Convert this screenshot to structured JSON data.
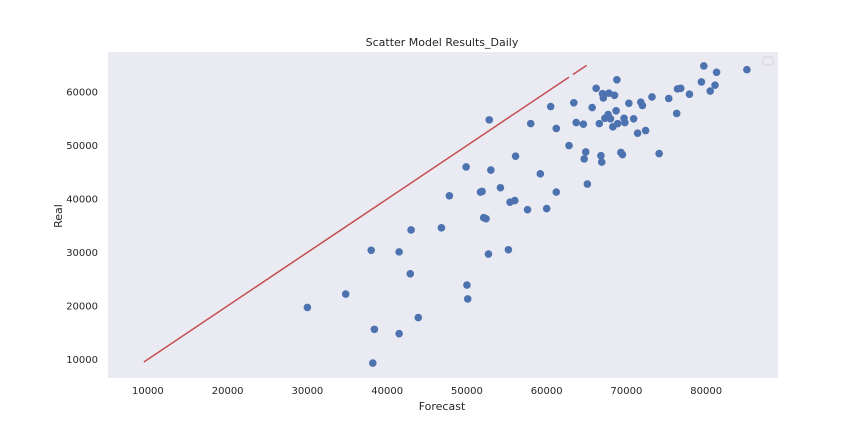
{
  "chart_data": {
    "type": "scatter",
    "title": "Scatter Model Results_Daily",
    "xlabel": "Forecast",
    "ylabel": "Real",
    "xlim": [
      5000,
      89000
    ],
    "ylim": [
      6500,
      67500
    ],
    "xticks": [
      10000,
      20000,
      30000,
      40000,
      50000,
      60000,
      70000,
      80000
    ],
    "yticks": [
      10000,
      20000,
      30000,
      40000,
      50000,
      60000
    ],
    "xtick_labels": [
      "10000",
      "20000",
      "30000",
      "40000",
      "50000",
      "60000",
      "70000",
      "80000"
    ],
    "ytick_labels": [
      "10000",
      "20000",
      "30000",
      "40000",
      "50000",
      "60000"
    ],
    "grid": false,
    "legend": "top-right",
    "colors": {
      "plot_background": "#eaeaf2",
      "points": "#4c72b0",
      "line": "#c44e52"
    },
    "line": {
      "x": [
        9500,
        62800,
        63300,
        65000
      ],
      "y": [
        9500,
        62800,
        63300,
        65000
      ]
    },
    "points": [
      [
        30000,
        19700
      ],
      [
        34800,
        22200
      ],
      [
        38000,
        30400
      ],
      [
        38200,
        9300
      ],
      [
        38400,
        15600
      ],
      [
        41500,
        30100
      ],
      [
        41500,
        14800
      ],
      [
        42900,
        26000
      ],
      [
        43000,
        34200
      ],
      [
        43900,
        17800
      ],
      [
        46800,
        34600
      ],
      [
        47800,
        40600
      ],
      [
        49900,
        46000
      ],
      [
        50000,
        23900
      ],
      [
        50100,
        21300
      ],
      [
        51700,
        41300
      ],
      [
        51900,
        41400
      ],
      [
        52100,
        36500
      ],
      [
        52400,
        36300
      ],
      [
        52700,
        29700
      ],
      [
        52800,
        54800
      ],
      [
        53000,
        45400
      ],
      [
        54200,
        42100
      ],
      [
        55200,
        30500
      ],
      [
        55400,
        39400
      ],
      [
        56000,
        39700
      ],
      [
        56100,
        48000
      ],
      [
        57600,
        38000
      ],
      [
        58000,
        54100
      ],
      [
        59200,
        44700
      ],
      [
        60000,
        38200
      ],
      [
        60500,
        57300
      ],
      [
        61200,
        41300
      ],
      [
        61200,
        53200
      ],
      [
        62800,
        50000
      ],
      [
        63400,
        58000
      ],
      [
        63700,
        54300
      ],
      [
        64600,
        54000
      ],
      [
        64700,
        47500
      ],
      [
        64900,
        48800
      ],
      [
        65100,
        42800
      ],
      [
        65700,
        57100
      ],
      [
        66200,
        60700
      ],
      [
        66600,
        54100
      ],
      [
        66800,
        48100
      ],
      [
        66900,
        46900
      ],
      [
        67000,
        59700
      ],
      [
        67100,
        58900
      ],
      [
        67300,
        55100
      ],
      [
        67700,
        55800
      ],
      [
        67800,
        59800
      ],
      [
        68000,
        55000
      ],
      [
        68300,
        53500
      ],
      [
        68500,
        59400
      ],
      [
        68700,
        56500
      ],
      [
        68800,
        62300
      ],
      [
        68900,
        54100
      ],
      [
        69300,
        48700
      ],
      [
        69500,
        48300
      ],
      [
        69700,
        55100
      ],
      [
        69800,
        54300
      ],
      [
        70300,
        57900
      ],
      [
        70900,
        55000
      ],
      [
        71400,
        52300
      ],
      [
        71800,
        58100
      ],
      [
        72000,
        57500
      ],
      [
        72400,
        52800
      ],
      [
        73200,
        59100
      ],
      [
        74100,
        48500
      ],
      [
        75300,
        58800
      ],
      [
        76300,
        56000
      ],
      [
        76400,
        60600
      ],
      [
        76800,
        60700
      ],
      [
        77900,
        59600
      ],
      [
        79400,
        61900
      ],
      [
        79700,
        64900
      ],
      [
        80500,
        60200
      ],
      [
        81100,
        61300
      ],
      [
        81300,
        63700
      ],
      [
        85100,
        64200
      ]
    ]
  }
}
